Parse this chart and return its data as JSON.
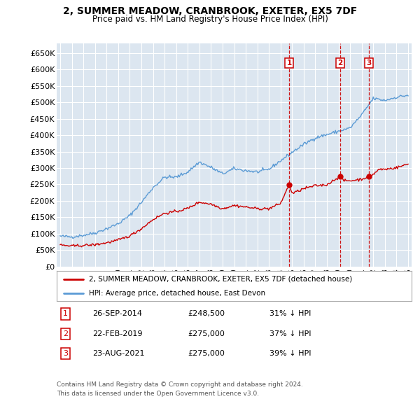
{
  "title": "2, SUMMER MEADOW, CRANBROOK, EXETER, EX5 7DF",
  "subtitle": "Price paid vs. HM Land Registry's House Price Index (HPI)",
  "ylim": [
    0,
    680000
  ],
  "yticks": [
    0,
    50000,
    100000,
    150000,
    200000,
    250000,
    300000,
    350000,
    400000,
    450000,
    500000,
    550000,
    600000,
    650000
  ],
  "ytick_labels": [
    "£0",
    "£50K",
    "£100K",
    "£150K",
    "£200K",
    "£250K",
    "£300K",
    "£350K",
    "£400K",
    "£450K",
    "£500K",
    "£550K",
    "£600K",
    "£650K"
  ],
  "background_color": "#ffffff",
  "plot_bg_color": "#dce6f0",
  "grid_color": "#ffffff",
  "transactions": [
    {
      "label": "1",
      "date": "26-SEP-2014",
      "price": 248500,
      "x": 2014.74,
      "pct": "31% ↓ HPI"
    },
    {
      "label": "2",
      "date": "22-FEB-2019",
      "price": 275000,
      "x": 2019.13,
      "pct": "37% ↓ HPI"
    },
    {
      "label": "3",
      "date": "23-AUG-2021",
      "price": 275000,
      "x": 2021.64,
      "pct": "39% ↓ HPI"
    }
  ],
  "legend_line1": "2, SUMMER MEADOW, CRANBROOK, EXETER, EX5 7DF (detached house)",
  "legend_line2": "HPI: Average price, detached house, East Devon",
  "footer_line1": "Contains HM Land Registry data © Crown copyright and database right 2024.",
  "footer_line2": "This data is licensed under the Open Government Licence v3.0.",
  "red_color": "#cc0000",
  "blue_color": "#5b9bd5",
  "hpi_anchors_x": [
    1995,
    1996,
    1997,
    1998,
    1999,
    2000,
    2001,
    2002,
    2003,
    2004,
    2005,
    2006,
    2007,
    2008,
    2009,
    2010,
    2011,
    2012,
    2013,
    2014,
    2015,
    2016,
    2017,
    2018,
    2019,
    2020,
    2021,
    2022,
    2023,
    2024,
    2025
  ],
  "hpi_anchors_y": [
    92000,
    90000,
    95000,
    102000,
    115000,
    130000,
    155000,
    195000,
    240000,
    272000,
    272000,
    288000,
    318000,
    302000,
    282000,
    298000,
    292000,
    288000,
    296000,
    322000,
    348000,
    372000,
    392000,
    402000,
    412000,
    422000,
    462000,
    512000,
    506000,
    516000,
    522000
  ],
  "red_anchors_x": [
    1995,
    1996,
    1997,
    1998,
    1999,
    2000,
    2001,
    2002,
    2003,
    2004,
    2005,
    2006,
    2007,
    2008,
    2009,
    2010,
    2011,
    2012,
    2013,
    2014,
    2014.74,
    2015,
    2016,
    2017,
    2018,
    2019.13,
    2019.5,
    2020,
    2021,
    2021.64,
    2022,
    2022.5,
    2023,
    2024,
    2025
  ],
  "red_anchors_y": [
    65000,
    62000,
    64000,
    66000,
    72000,
    80000,
    93000,
    115000,
    143000,
    162000,
    167000,
    177000,
    196000,
    190000,
    176000,
    186000,
    181000,
    176000,
    176000,
    192000,
    248500,
    222000,
    237000,
    246000,
    249000,
    275000,
    261000,
    261000,
    266000,
    275000,
    281000,
    296000,
    296000,
    301000,
    312000
  ]
}
